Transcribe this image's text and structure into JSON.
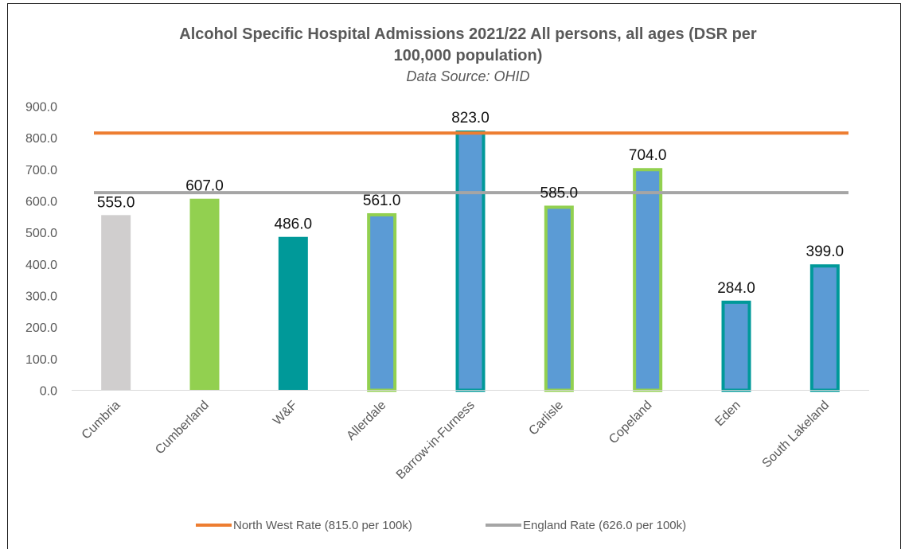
{
  "chart_data": {
    "type": "bar",
    "title": "Alcohol Specific Hospital Admissions  2021/22 All persons, all ages (DSR per 100,000 population)",
    "title_lines": [
      "Alcohol Specific Hospital Admissions  2021/22 All persons, all ages (DSR per",
      "100,000 population)"
    ],
    "subtitle": "Data Source: OHID",
    "xlabel": "",
    "ylabel": "",
    "ylim": [
      0,
      900
    ],
    "yticks": [
      0,
      100,
      200,
      300,
      400,
      500,
      600,
      700,
      800,
      900
    ],
    "ytick_labels": [
      "0.0",
      "100.0",
      "200.0",
      "300.0",
      "400.0",
      "500.0",
      "600.0",
      "700.0",
      "800.0",
      "900.0"
    ],
    "grid": false,
    "categories": [
      "Cumbria",
      "Cumberland",
      "W&F",
      "Allerdale",
      "Barrow-in-Furness",
      "Carlisle",
      "Copeland",
      "Eden",
      "South Lakeland"
    ],
    "values": [
      555.0,
      607.0,
      486.0,
      561.0,
      823.0,
      585.0,
      704.0,
      284.0,
      399.0
    ],
    "value_labels": [
      "555.0",
      "607.0",
      "486.0",
      "561.0",
      "823.0",
      "585.0",
      "704.0",
      "284.0",
      "399.0"
    ],
    "bar_fill_colors": [
      "#d0cece",
      "#92d050",
      "#009999",
      "#5b9bd5",
      "#5b9bd5",
      "#5b9bd5",
      "#5b9bd5",
      "#5b9bd5",
      "#5b9bd5"
    ],
    "bar_outline_colors": [
      "none",
      "none",
      "none",
      "#92d050",
      "#009999",
      "#92d050",
      "#92d050",
      "#009999",
      "#009999"
    ],
    "reference_lines": [
      {
        "name": "North West Rate (815.0 per 100k)",
        "value": 815.0,
        "color": "#ed7d31"
      },
      {
        "name": "England Rate (626.0 per 100k)",
        "value": 626.0,
        "color": "#a5a5a5"
      }
    ],
    "legend_position": "bottom"
  }
}
